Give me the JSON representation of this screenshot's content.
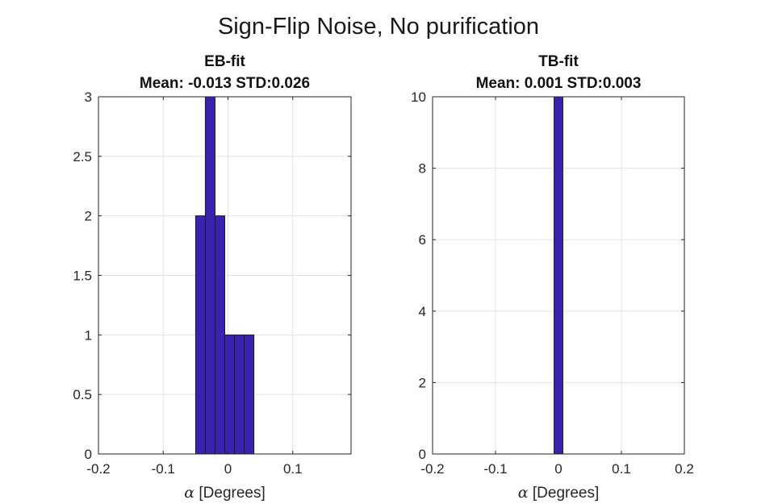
{
  "figure": {
    "title": "Sign-Flip Noise, No purification"
  },
  "chart_data": [
    {
      "type": "bar",
      "title_line1": "EB-fit",
      "title_line2": "Mean: -0.013 STD:0.026",
      "xlabel_symbol": "α",
      "xlabel_text": " [Degrees]",
      "xlim": [
        -0.2,
        0.19
      ],
      "ylim": [
        0,
        3
      ],
      "xticks": [
        -0.2,
        -0.1,
        0,
        0.1
      ],
      "xtick_labels": [
        "-0.2",
        "-0.1",
        "0",
        "0.1"
      ],
      "yticks": [
        0,
        0.5,
        1,
        1.5,
        2,
        2.5,
        3
      ],
      "ytick_labels": [
        "0",
        "0.5",
        "1",
        "1.5",
        "2",
        "2.5",
        "3"
      ],
      "grid": true,
      "bar_color": "#3a22b0",
      "bins": [
        {
          "x0": -0.05,
          "x1": -0.035,
          "count": 2
        },
        {
          "x0": -0.035,
          "x1": -0.02,
          "count": 3
        },
        {
          "x0": -0.02,
          "x1": -0.005,
          "count": 2
        },
        {
          "x0": -0.005,
          "x1": 0.01,
          "count": 1
        },
        {
          "x0": 0.01,
          "x1": 0.025,
          "count": 1
        },
        {
          "x0": 0.025,
          "x1": 0.04,
          "count": 1
        }
      ]
    },
    {
      "type": "bar",
      "title_line1": "TB-fit",
      "title_line2": "Mean: 0.001 STD:0.003",
      "xlabel_symbol": "α",
      "xlabel_text": " [Degrees]",
      "xlim": [
        -0.2,
        0.2
      ],
      "ylim": [
        0,
        10
      ],
      "xticks": [
        -0.2,
        -0.1,
        0,
        0.1,
        0.2
      ],
      "xtick_labels": [
        "-0.2",
        "-0.1",
        "0",
        "0.1",
        "0.2"
      ],
      "yticks": [
        0,
        2,
        4,
        6,
        8,
        10
      ],
      "ytick_labels": [
        "0",
        "2",
        "4",
        "6",
        "8",
        "10"
      ],
      "grid": true,
      "bar_color": "#3a22b0",
      "bins": [
        {
          "x0": -0.007,
          "x1": 0.007,
          "count": 10
        }
      ]
    }
  ]
}
